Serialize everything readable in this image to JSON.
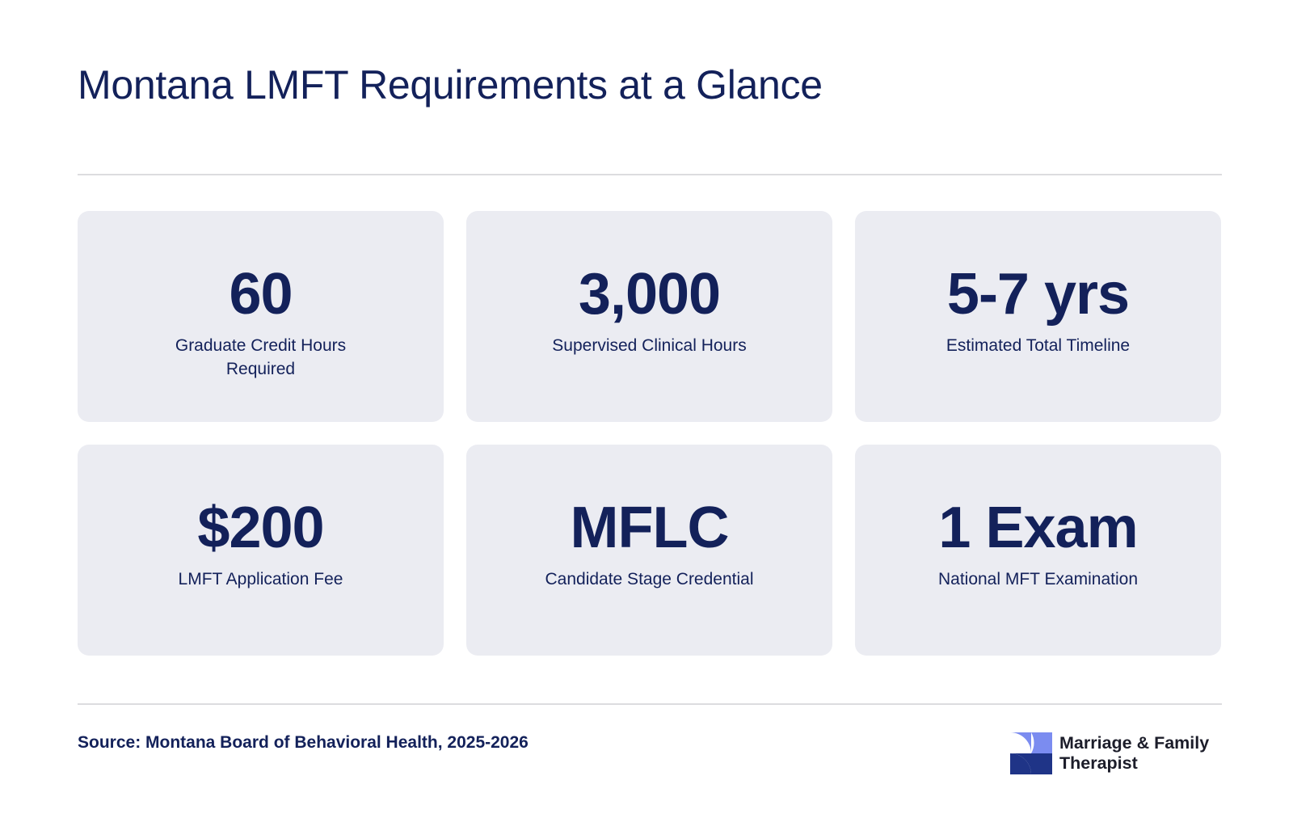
{
  "title": "Montana LMFT Requirements at a Glance",
  "cards": [
    {
      "value": "60",
      "label": "Graduate Credit Hours Required"
    },
    {
      "value": "3,000",
      "label": "Supervised Clinical Hours"
    },
    {
      "value": "5-7 yrs",
      "label": "Estimated Total Timeline"
    },
    {
      "value": "$200",
      "label": "LMFT Application Fee"
    },
    {
      "value": "MFLC",
      "label": "Candidate Stage Credential"
    },
    {
      "value": "1 Exam",
      "label": "National MFT Examination"
    }
  ],
  "source": "Source: Montana Board of Behavioral Health, 2025-2026",
  "logo": {
    "line1": "Marriage & Family",
    "line2": "Therapist",
    "icon": "pinwheel-logo-icon",
    "colors": {
      "light": "#7b8cf0",
      "dark": "#1f3487"
    }
  },
  "colors": {
    "text": "#13215a",
    "card_background": "#ebecf2",
    "divider": "#dcdcdf"
  }
}
